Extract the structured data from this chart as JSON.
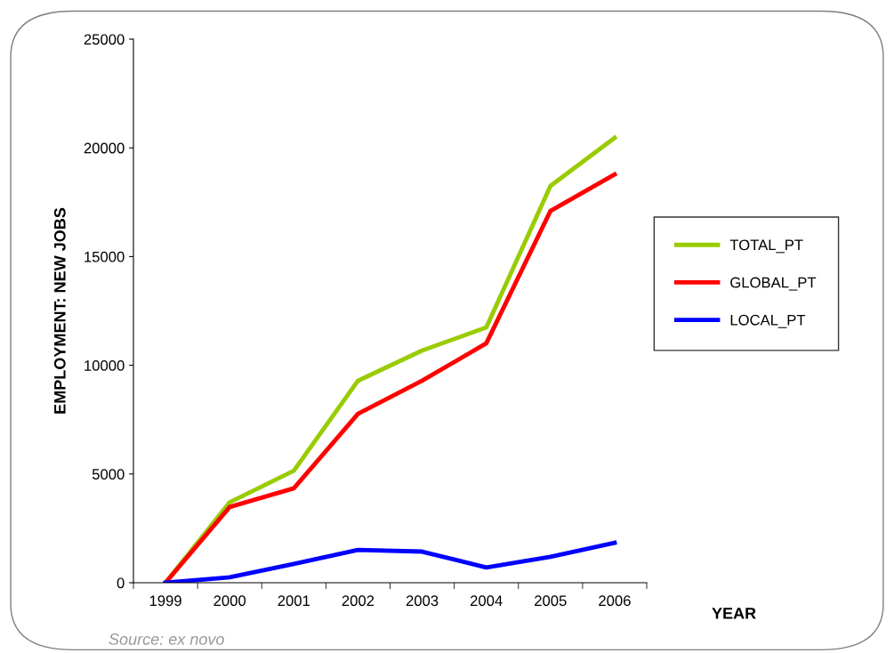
{
  "chart_data": {
    "type": "line",
    "xlabel": "YEAR",
    "ylabel": "EMPLOYMENT: NEW JOBS",
    "categories": [
      "1999",
      "2000",
      "2001",
      "2002",
      "2003",
      "2004",
      "2005",
      "2006"
    ],
    "series": [
      {
        "name": "TOTAL_PT",
        "color": "#99cc00",
        "values": [
          0,
          3700,
          5150,
          9290,
          10680,
          11740,
          18250,
          20460
        ]
      },
      {
        "name": "GLOBAL_PT",
        "color": "#ff0000",
        "values": [
          0,
          3480,
          4340,
          7770,
          9290,
          11010,
          17100,
          18780
        ]
      },
      {
        "name": "LOCAL_PT",
        "color": "#0000ff",
        "values": [
          0,
          250,
          860,
          1510,
          1430,
          700,
          1190,
          1840
        ]
      }
    ],
    "ylim": [
      0,
      25000
    ],
    "yticks": [
      0,
      5000,
      10000,
      15000,
      20000,
      25000
    ],
    "grid": false,
    "legend": "right",
    "marker": "none",
    "line_style": "solid",
    "annotations": [
      "Source: ex novo"
    ]
  }
}
